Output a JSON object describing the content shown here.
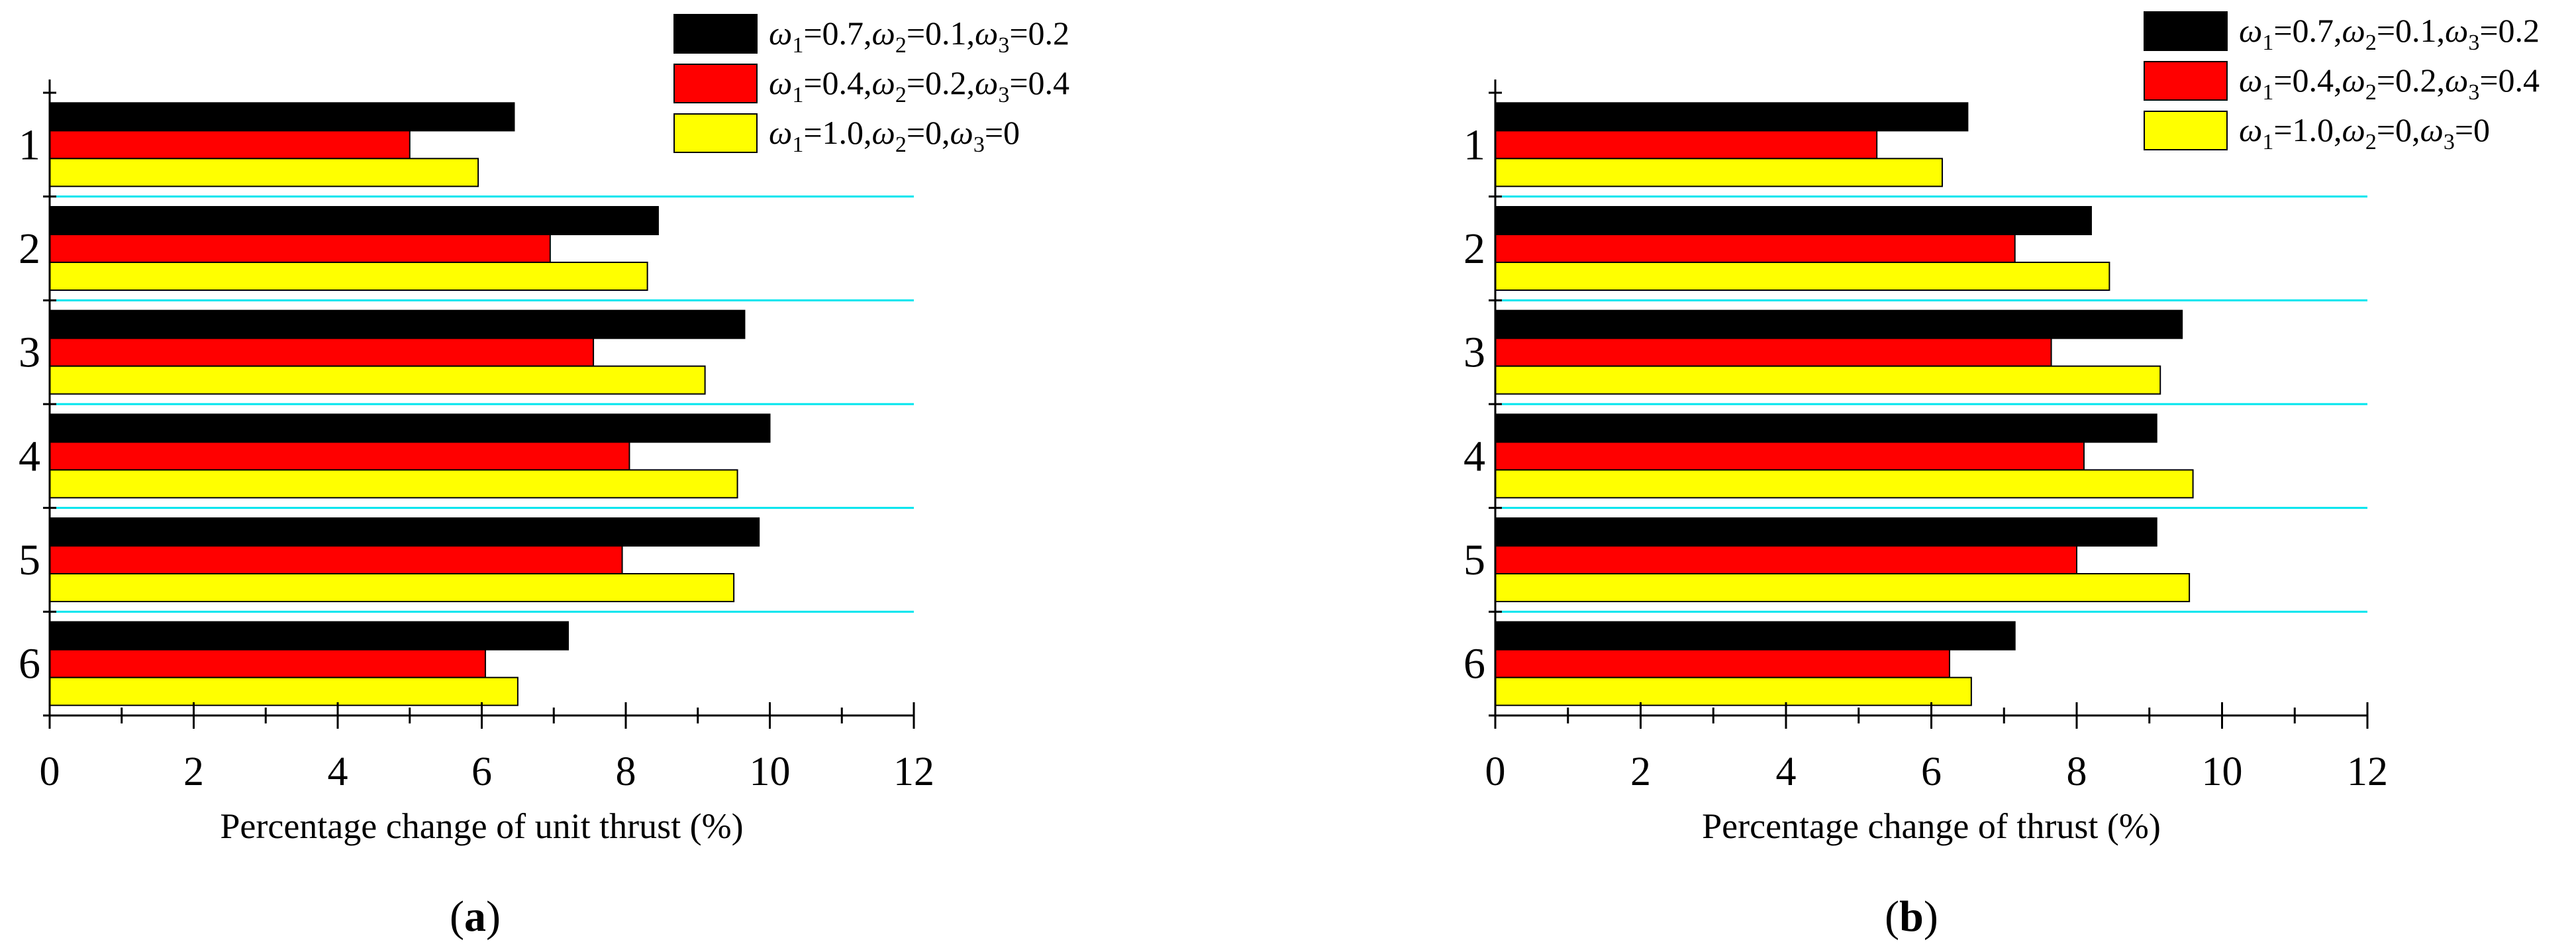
{
  "legend": {
    "entries": [
      {
        "color": "#000000",
        "w1": "0.7",
        "w2": "0.1",
        "w3": "0.2"
      },
      {
        "color": "#ff0000",
        "w1": "0.4",
        "w2": "0.2",
        "w3": "0.4"
      },
      {
        "color": "#ffff00",
        "w1": "1.0",
        "w2": "0",
        "w3": "0"
      }
    ]
  },
  "chart_data": [
    {
      "type": "bar",
      "orientation": "horizontal",
      "panel_label": "a",
      "xlabel": "Percentage change of unit thrust (%)",
      "ylabel": "",
      "categories": [
        "1",
        "2",
        "3",
        "4",
        "5",
        "6"
      ],
      "xlim": [
        0,
        12
      ],
      "xticks": [
        "0",
        "2",
        "4",
        "6",
        "8",
        "10",
        "12"
      ],
      "separators": true,
      "legend_position": "top-right",
      "series": [
        {
          "name": "ω1=0.7,ω2=0.1,ω3=0.2",
          "color": "#000000",
          "values": [
            6.45,
            8.45,
            9.65,
            10.0,
            9.85,
            7.2
          ]
        },
        {
          "name": "ω1=0.4,ω2=0.2,ω3=0.4",
          "color": "#ff0000",
          "values": [
            5.0,
            6.95,
            7.55,
            8.05,
            7.95,
            6.05
          ]
        },
        {
          "name": "ω1=1.0,ω2=0,ω3=0",
          "color": "#ffff00",
          "values": [
            5.95,
            8.3,
            9.1,
            9.55,
            9.5,
            6.5
          ]
        }
      ]
    },
    {
      "type": "bar",
      "orientation": "horizontal",
      "panel_label": "b",
      "xlabel": "Percentage change of thrust (%)",
      "ylabel": "",
      "categories": [
        "1",
        "2",
        "3",
        "4",
        "5",
        "6"
      ],
      "xlim": [
        0,
        12
      ],
      "xticks": [
        "0",
        "2",
        "4",
        "6",
        "8",
        "10",
        "12"
      ],
      "separators": true,
      "legend_position": "top-right",
      "series": [
        {
          "name": "ω1=0.7,ω2=0.1,ω3=0.2",
          "color": "#000000",
          "values": [
            6.5,
            8.2,
            9.45,
            9.1,
            9.1,
            7.15
          ]
        },
        {
          "name": "ω1=0.4,ω2=0.2,ω3=0.4",
          "color": "#ff0000",
          "values": [
            5.25,
            7.15,
            7.65,
            8.1,
            8.0,
            6.25
          ]
        },
        {
          "name": "ω1=1.0,ω2=0,ω3=0",
          "color": "#ffff00",
          "values": [
            6.15,
            8.45,
            9.15,
            9.6,
            9.55,
            6.55
          ]
        }
      ]
    }
  ]
}
